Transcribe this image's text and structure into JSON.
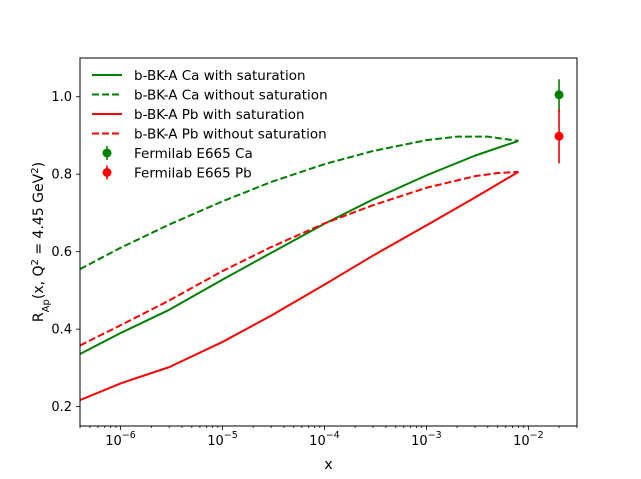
{
  "chart_data": {
    "type": "line",
    "xscale": "log",
    "xlim": [
      4e-07,
      0.03
    ],
    "ylim": [
      0.15,
      1.1
    ],
    "xlabel": "x",
    "ylabel_parts": {
      "main": "R",
      "sub": "Ap",
      "mid": "(x, Q",
      "sup1": "2",
      "mid2": " = 4.45 GeV",
      "sup2": "2",
      "end": ")"
    },
    "x_ticks": [
      {
        "value": 1e-06,
        "base": "10",
        "exp": "−6"
      },
      {
        "value": 1e-05,
        "base": "10",
        "exp": "−5"
      },
      {
        "value": 0.0001,
        "base": "10",
        "exp": "−4"
      },
      {
        "value": 0.001,
        "base": "10",
        "exp": "−3"
      },
      {
        "value": 0.01,
        "base": "10",
        "exp": "−2"
      }
    ],
    "y_ticks": [
      {
        "value": 0.2,
        "label": "0.2"
      },
      {
        "value": 0.4,
        "label": "0.4"
      },
      {
        "value": 0.6,
        "label": "0.6"
      },
      {
        "value": 0.8,
        "label": "0.8"
      },
      {
        "value": 1.0,
        "label": "1.0"
      }
    ],
    "series": [
      {
        "name": "b-BK-A Ca with saturation",
        "color": "#008000",
        "style": "solid",
        "x": [
          4e-07,
          1e-06,
          3e-06,
          1e-05,
          3e-05,
          0.0001,
          0.0003,
          0.001,
          0.003,
          0.008
        ],
        "y": [
          0.336,
          0.39,
          0.45,
          0.528,
          0.597,
          0.672,
          0.735,
          0.797,
          0.848,
          0.886
        ]
      },
      {
        "name": "b-BK-A Ca without saturation",
        "color": "#008000",
        "style": "dashed",
        "x": [
          4e-07,
          1e-06,
          3e-06,
          1e-05,
          3e-05,
          0.0001,
          0.0003,
          0.001,
          0.002,
          0.004,
          0.008
        ],
        "y": [
          0.555,
          0.61,
          0.67,
          0.73,
          0.78,
          0.826,
          0.86,
          0.888,
          0.897,
          0.897,
          0.886
        ]
      },
      {
        "name": "b-BK-A Pb with saturation",
        "color": "#ff0000",
        "style": "solid",
        "x": [
          4e-07,
          1e-06,
          3e-06,
          1e-05,
          3e-05,
          0.0001,
          0.0003,
          0.001,
          0.003,
          0.008
        ],
        "y": [
          0.217,
          0.26,
          0.302,
          0.367,
          0.435,
          0.515,
          0.59,
          0.668,
          0.74,
          0.806
        ]
      },
      {
        "name": "b-BK-A Pb without saturation",
        "color": "#ff0000",
        "style": "dashed",
        "x": [
          4e-07,
          1e-06,
          3e-06,
          1e-05,
          3e-05,
          0.0001,
          0.0003,
          0.001,
          0.003,
          0.005,
          0.008
        ],
        "y": [
          0.358,
          0.41,
          0.474,
          0.55,
          0.612,
          0.673,
          0.72,
          0.765,
          0.795,
          0.803,
          0.806
        ]
      }
    ],
    "points": [
      {
        "name": "Fermilab E665 Ca",
        "color": "#008000",
        "x": 0.02,
        "y": 1.005,
        "yerr_low": 0.045,
        "yerr_high": 0.04
      },
      {
        "name": "Fermilab E665 Pb",
        "color": "#ff0000",
        "x": 0.02,
        "y": 0.898,
        "yerr_low": 0.07,
        "yerr_high": 0.07
      }
    ],
    "legend": {
      "position": "top-left",
      "entries": [
        "b-BK-A Ca with saturation",
        "b-BK-A Ca without saturation",
        "b-BK-A Pb with saturation",
        "b-BK-A Pb without saturation",
        "Fermilab E665 Ca",
        "Fermilab E665 Pb"
      ]
    },
    "grid": false
  }
}
